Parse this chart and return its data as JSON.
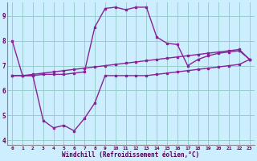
{
  "xlabel": "Windchill (Refroidissement éolien,°C)",
  "bg_color": "#cceeff",
  "grid_color": "#99cccc",
  "line_color": "#882299",
  "xlim": [
    -0.5,
    23.5
  ],
  "ylim": [
    3.8,
    9.55
  ],
  "yticks": [
    4,
    5,
    6,
    7,
    8,
    9
  ],
  "xticks": [
    0,
    1,
    2,
    3,
    4,
    5,
    6,
    7,
    8,
    9,
    10,
    11,
    12,
    13,
    14,
    15,
    16,
    17,
    18,
    19,
    20,
    21,
    22,
    23
  ],
  "line1_x": [
    0,
    1,
    2,
    3,
    4,
    5,
    6,
    7,
    8,
    9,
    10,
    11,
    12,
    13,
    14,
    15,
    16,
    17,
    18,
    19,
    20,
    21,
    22,
    23
  ],
  "line1_y": [
    8.0,
    6.6,
    6.6,
    6.65,
    6.65,
    6.65,
    6.7,
    6.75,
    8.55,
    9.3,
    9.35,
    9.25,
    9.35,
    9.35,
    8.15,
    7.9,
    7.85,
    7.0,
    7.25,
    7.4,
    7.5,
    7.55,
    7.6,
    7.25
  ],
  "line2_x": [
    0,
    1,
    2,
    3,
    4,
    5,
    6,
    7,
    8,
    9,
    10,
    11,
    12,
    13,
    14,
    15,
    16,
    17,
    18,
    19,
    20,
    21,
    22,
    23
  ],
  "line2_y": [
    6.6,
    6.6,
    6.65,
    6.7,
    6.75,
    6.8,
    6.85,
    6.9,
    6.95,
    7.0,
    7.05,
    7.1,
    7.15,
    7.2,
    7.25,
    7.3,
    7.35,
    7.4,
    7.45,
    7.5,
    7.55,
    7.6,
    7.65,
    7.25
  ],
  "line3_x": [
    0,
    1,
    2,
    3,
    4,
    5,
    6,
    7,
    8,
    9,
    10,
    11,
    12,
    13,
    14,
    15,
    16,
    17,
    18,
    19,
    20,
    21,
    22,
    23
  ],
  "line3_y": [
    6.6,
    6.6,
    6.6,
    4.8,
    4.5,
    4.6,
    4.38,
    4.88,
    5.5,
    6.6,
    6.6,
    6.6,
    6.6,
    6.6,
    6.65,
    6.7,
    6.75,
    6.8,
    6.85,
    6.9,
    6.95,
    7.0,
    7.05,
    7.25
  ]
}
